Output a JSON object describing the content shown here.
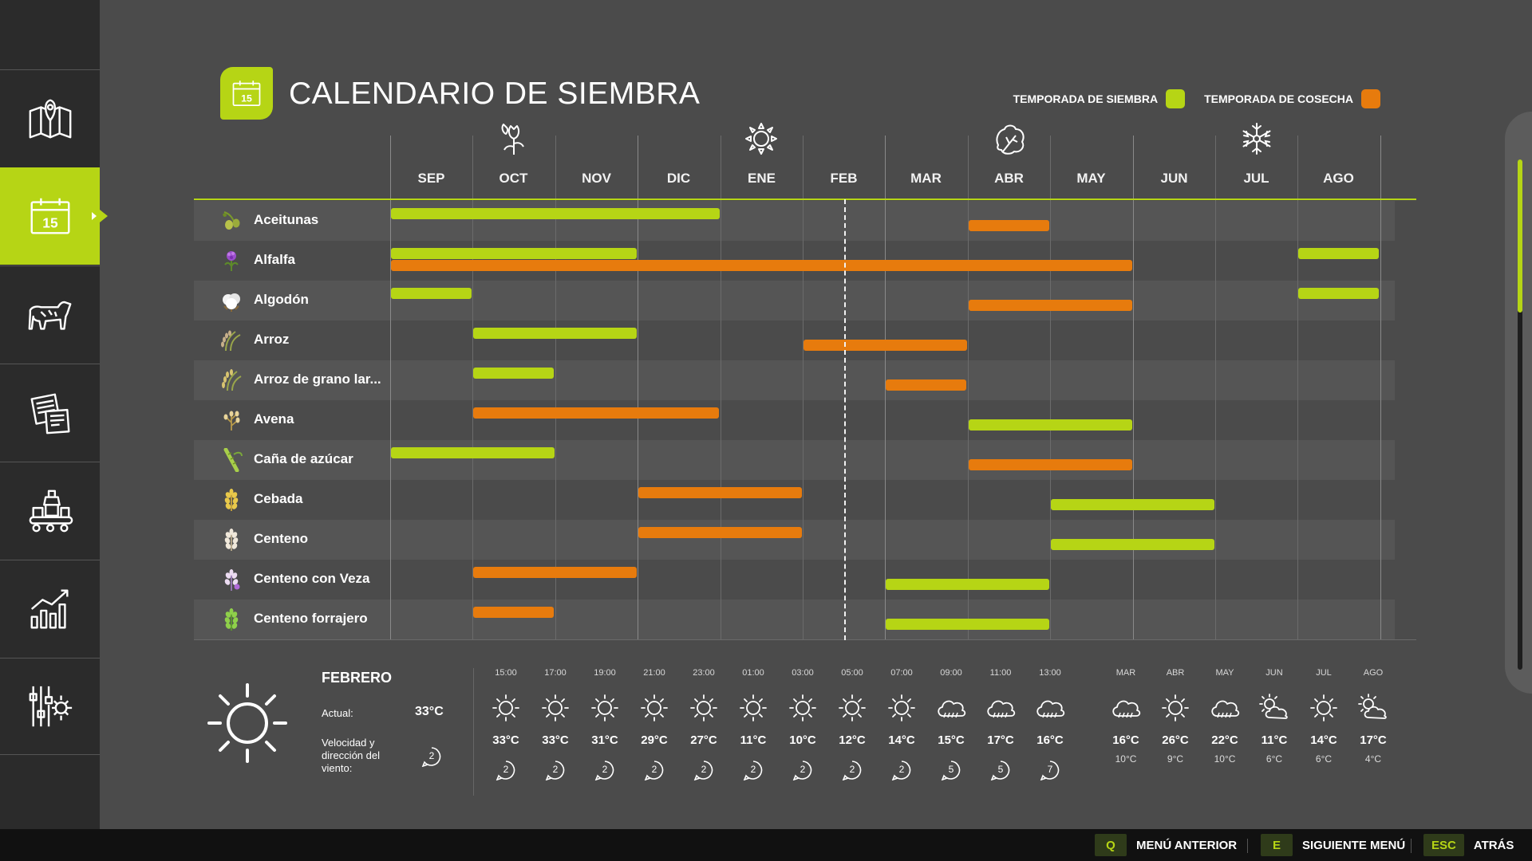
{
  "sidebar": {
    "items": [
      {
        "icon": "map-icon"
      },
      {
        "icon": "calendar-icon",
        "active": true
      },
      {
        "icon": "cattle-icon"
      },
      {
        "icon": "contracts-icon"
      },
      {
        "icon": "production-icon"
      },
      {
        "icon": "statistics-icon"
      },
      {
        "icon": "settings-icon"
      }
    ]
  },
  "header": {
    "title": "CALENDARIO DE SIEMBRA",
    "title_icon_text": "15"
  },
  "legend": {
    "sowing_label": "TEMPORADA DE SIEMBRA",
    "harvest_label": "TEMPORADA DE COSECHA",
    "sowing_color": "#b6d515",
    "harvest_color": "#e77b0d"
  },
  "calendar": {
    "months": [
      "SEP",
      "OCT",
      "NOV",
      "DIC",
      "ENE",
      "FEB",
      "MAR",
      "ABR",
      "MAY",
      "JUN",
      "JUL",
      "AGO"
    ],
    "seasons": [
      {
        "icon": "spring-flower-icon",
        "month_index": 1
      },
      {
        "icon": "summer-sun-icon",
        "month_index": 4
      },
      {
        "icon": "autumn-leaf-icon",
        "month_index": 7
      },
      {
        "icon": "winter-snowflake-icon",
        "month_index": 10
      }
    ],
    "current_month_index": 5,
    "crops": [
      {
        "name": "Aceitunas",
        "icon": "olives-icon",
        "sow": [
          [
            0,
            4
          ]
        ],
        "harvest": [
          [
            7,
            8
          ]
        ]
      },
      {
        "name": "Alfalfa",
        "icon": "alfalfa-icon",
        "sow": [
          [
            0,
            3
          ],
          [
            11,
            12
          ]
        ],
        "harvest": [
          [
            0,
            9
          ]
        ]
      },
      {
        "name": "Algodón",
        "icon": "cotton-icon",
        "sow": [
          [
            0,
            1
          ],
          [
            11,
            12
          ]
        ],
        "harvest": [
          [
            7,
            9
          ]
        ]
      },
      {
        "name": "Arroz",
        "icon": "rice-icon",
        "sow": [
          [
            1,
            3
          ]
        ],
        "harvest": [
          [
            5,
            7
          ]
        ]
      },
      {
        "name": "Arroz de grano lar...",
        "icon": "long-grain-rice-icon",
        "sow": [
          [
            1,
            2
          ]
        ],
        "harvest": [
          [
            6,
            7
          ]
        ]
      },
      {
        "name": "Avena",
        "icon": "oat-icon",
        "sow": [
          [
            7,
            9
          ]
        ],
        "harvest": [
          [
            1,
            4
          ]
        ]
      },
      {
        "name": "Caña de azúcar",
        "icon": "sugarcane-icon",
        "sow": [
          [
            0,
            2
          ]
        ],
        "harvest": [
          [
            7,
            9
          ]
        ]
      },
      {
        "name": "Cebada",
        "icon": "barley-icon",
        "sow": [
          [
            8,
            10
          ]
        ],
        "harvest": [
          [
            3,
            5
          ]
        ]
      },
      {
        "name": "Centeno",
        "icon": "rye-icon",
        "sow": [
          [
            8,
            10
          ]
        ],
        "harvest": [
          [
            3,
            5
          ]
        ]
      },
      {
        "name": "Centeno con Veza",
        "icon": "rye-vetch-icon",
        "sow": [
          [
            6,
            8
          ]
        ],
        "harvest": [
          [
            1,
            3
          ]
        ]
      },
      {
        "name": "Centeno forrajero",
        "icon": "forage-rye-icon",
        "sow": [
          [
            6,
            8
          ]
        ],
        "harvest": [
          [
            1,
            2
          ]
        ]
      }
    ]
  },
  "weather": {
    "month": "FEBRERO",
    "actual_label": "Actual:",
    "actual_value": "33°C",
    "wind_label": "Velocidad y dirección del viento:",
    "wind_value": "2",
    "hourly": [
      {
        "time": "15:00",
        "icon": "sun-icon",
        "temp": "33°C",
        "wind": "2"
      },
      {
        "time": "17:00",
        "icon": "sun-icon",
        "temp": "33°C",
        "wind": "2"
      },
      {
        "time": "19:00",
        "icon": "sun-icon",
        "temp": "31°C",
        "wind": "2"
      },
      {
        "time": "21:00",
        "icon": "sun-icon",
        "temp": "29°C",
        "wind": "2"
      },
      {
        "time": "23:00",
        "icon": "sun-icon",
        "temp": "27°C",
        "wind": "2"
      },
      {
        "time": "01:00",
        "icon": "sun-icon",
        "temp": "11°C",
        "wind": "2"
      },
      {
        "time": "03:00",
        "icon": "sun-icon",
        "temp": "10°C",
        "wind": "2"
      },
      {
        "time": "05:00",
        "icon": "sun-icon",
        "temp": "12°C",
        "wind": "2"
      },
      {
        "time": "07:00",
        "icon": "sun-icon",
        "temp": "14°C",
        "wind": "2"
      },
      {
        "time": "09:00",
        "icon": "rain-icon",
        "temp": "15°C",
        "wind": "5"
      },
      {
        "time": "11:00",
        "icon": "rain-icon",
        "temp": "17°C",
        "wind": "5"
      },
      {
        "time": "13:00",
        "icon": "rain-icon",
        "temp": "16°C",
        "wind": "7"
      }
    ],
    "monthly": [
      {
        "month": "MAR",
        "icon": "rain-icon",
        "high": "16°C",
        "low": "10°C"
      },
      {
        "month": "ABR",
        "icon": "sun-icon",
        "high": "26°C",
        "low": "9°C"
      },
      {
        "month": "MAY",
        "icon": "rain-icon",
        "high": "22°C",
        "low": "10°C"
      },
      {
        "month": "JUN",
        "icon": "partly-cloudy-icon",
        "high": "11°C",
        "low": "6°C"
      },
      {
        "month": "JUL",
        "icon": "sun-icon",
        "high": "14°C",
        "low": "6°C"
      },
      {
        "month": "AGO",
        "icon": "partly-cloudy-icon",
        "high": "17°C",
        "low": "4°C"
      }
    ]
  },
  "scrollbar": {
    "position": 0.0,
    "visible_fraction": 0.3
  },
  "footer": {
    "hints": [
      {
        "key": "Q",
        "label": "MENÚ ANTERIOR"
      },
      {
        "key": "E",
        "label": "SIGUIENTE MENÚ"
      },
      {
        "key": "ESC",
        "label": "ATRÁS"
      }
    ]
  }
}
